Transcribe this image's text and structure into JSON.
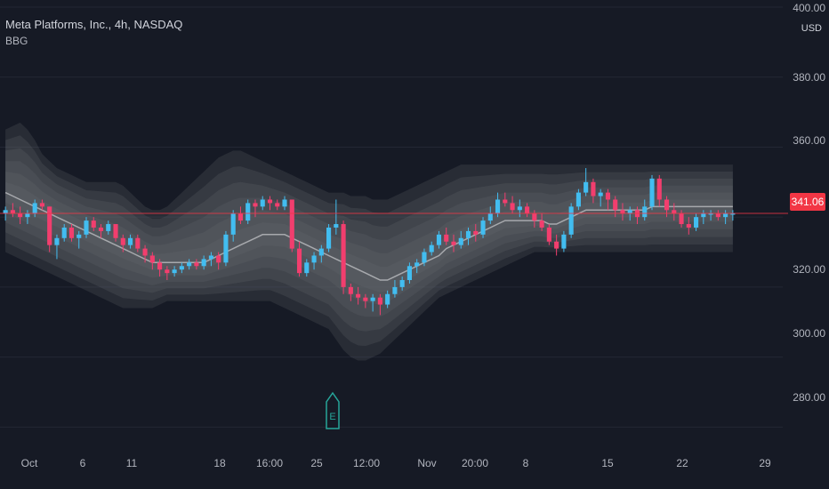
{
  "header": {
    "title": "Meta Platforms, Inc., 4h, NASDAQ",
    "indicator": "BBG"
  },
  "price_axis": {
    "currency": "USD",
    "ticks": [
      "400.00",
      "380.00",
      "360.00",
      "341.06",
      "320.00",
      "300.00",
      "280.00"
    ],
    "last_price": "341.06"
  },
  "time_axis": {
    "ticks": [
      "Oct",
      "6",
      "11",
      "18",
      "16:00",
      "25",
      "12:00",
      "Nov",
      "20:00",
      "8",
      "15",
      "22",
      "29"
    ]
  },
  "earnings_marker": {
    "label": "E"
  },
  "colors": {
    "background": "#161a25",
    "up": "#42bdf0",
    "down": "#f23e6e",
    "band": "#6b6d72",
    "basis": "#a7a9ad",
    "last_price": "#f23645"
  },
  "chart_data": {
    "type": "candlestick",
    "title": "Meta Platforms, Inc., 4h, NASDAQ",
    "ylim": [
      275,
      400
    ],
    "grid": true,
    "last_price": 341.06,
    "series": [
      {
        "name": "BBG",
        "x": [
          0,
          1,
          2,
          3,
          4,
          5,
          6,
          7,
          8,
          9,
          10,
          11,
          12,
          13,
          14,
          15,
          16,
          17,
          18,
          19,
          20,
          21,
          22,
          23,
          24,
          25,
          26,
          27,
          28,
          29,
          30,
          31,
          32,
          33,
          34,
          35,
          36,
          37,
          38,
          39,
          40,
          41,
          42,
          43,
          44,
          45,
          46,
          47,
          48,
          49,
          50,
          51,
          52,
          53,
          54,
          55,
          56,
          57,
          58,
          59,
          60,
          61,
          62,
          63,
          64,
          65,
          66,
          67,
          68,
          69,
          70,
          71,
          72,
          73,
          74,
          75,
          76,
          77,
          78,
          79,
          80,
          81,
          82,
          83,
          84,
          85,
          86,
          87,
          88,
          89,
          90,
          91,
          92,
          93,
          94,
          95,
          96,
          97,
          98,
          99
        ],
        "ohlc": [
          [
            341,
            343,
            339,
            342
          ],
          [
            342,
            344,
            340,
            341
          ],
          [
            341,
            343,
            338,
            340
          ],
          [
            340,
            342,
            338,
            341
          ],
          [
            341,
            345,
            340,
            344
          ],
          [
            344,
            345,
            342,
            343
          ],
          [
            343,
            343,
            330,
            332
          ],
          [
            332,
            335,
            328,
            334
          ],
          [
            334,
            338,
            333,
            337
          ],
          [
            337,
            338,
            333,
            334
          ],
          [
            334,
            336,
            331,
            335
          ],
          [
            335,
            340,
            334,
            339
          ],
          [
            339,
            340,
            336,
            337
          ],
          [
            337,
            338,
            334,
            336
          ],
          [
            336,
            339,
            335,
            338
          ],
          [
            338,
            338,
            333,
            334
          ],
          [
            334,
            335,
            330,
            332
          ],
          [
            332,
            335,
            331,
            334
          ],
          [
            334,
            335,
            330,
            331
          ],
          [
            331,
            332,
            327,
            329
          ],
          [
            329,
            330,
            325,
            327
          ],
          [
            327,
            328,
            323,
            325
          ],
          [
            325,
            326,
            322,
            324
          ],
          [
            324,
            326,
            323,
            325
          ],
          [
            325,
            327,
            324,
            326
          ],
          [
            326,
            328,
            325,
            327
          ],
          [
            327,
            328,
            325,
            326
          ],
          [
            326,
            329,
            325,
            328
          ],
          [
            328,
            330,
            326,
            329
          ],
          [
            329,
            330,
            325,
            327
          ],
          [
            327,
            336,
            326,
            335
          ],
          [
            335,
            342,
            333,
            341
          ],
          [
            341,
            343,
            338,
            339
          ],
          [
            339,
            345,
            338,
            344
          ],
          [
            344,
            345,
            340,
            343
          ],
          [
            343,
            346,
            342,
            345
          ],
          [
            345,
            346,
            342,
            344
          ],
          [
            344,
            345,
            342,
            343
          ],
          [
            343,
            346,
            342,
            345
          ],
          [
            345,
            345,
            330,
            331
          ],
          [
            331,
            333,
            323,
            324
          ],
          [
            324,
            328,
            323,
            327
          ],
          [
            327,
            330,
            325,
            329
          ],
          [
            329,
            332,
            327,
            331
          ],
          [
            331,
            338,
            330,
            337
          ],
          [
            337,
            345,
            335,
            338
          ],
          [
            338,
            339,
            318,
            320
          ],
          [
            320,
            321,
            316,
            318
          ],
          [
            318,
            320,
            315,
            317
          ],
          [
            317,
            318,
            314,
            316
          ],
          [
            316,
            318,
            313,
            317
          ],
          [
            317,
            318,
            312,
            315
          ],
          [
            315,
            319,
            314,
            318
          ],
          [
            318,
            322,
            317,
            320
          ],
          [
            320,
            323,
            319,
            322
          ],
          [
            322,
            327,
            321,
            326
          ],
          [
            326,
            328,
            324,
            327
          ],
          [
            327,
            331,
            326,
            330
          ],
          [
            330,
            333,
            329,
            332
          ],
          [
            332,
            336,
            331,
            335
          ],
          [
            335,
            337,
            332,
            333
          ],
          [
            333,
            335,
            330,
            332
          ],
          [
            332,
            336,
            331,
            334
          ],
          [
            334,
            337,
            332,
            336
          ],
          [
            336,
            338,
            333,
            335
          ],
          [
            335,
            340,
            334,
            339
          ],
          [
            339,
            343,
            338,
            341
          ],
          [
            341,
            347,
            340,
            345
          ],
          [
            345,
            347,
            343,
            344
          ],
          [
            344,
            346,
            341,
            342
          ],
          [
            342,
            345,
            340,
            343
          ],
          [
            343,
            344,
            340,
            341
          ],
          [
            341,
            342,
            337,
            339
          ],
          [
            339,
            341,
            336,
            337
          ],
          [
            337,
            338,
            332,
            333
          ],
          [
            333,
            335,
            329,
            331
          ],
          [
            331,
            336,
            330,
            335
          ],
          [
            335,
            344,
            334,
            343
          ],
          [
            343,
            348,
            342,
            347
          ],
          [
            347,
            354,
            346,
            350
          ],
          [
            350,
            351,
            344,
            346
          ],
          [
            346,
            348,
            343,
            347
          ],
          [
            347,
            348,
            342,
            345
          ],
          [
            345,
            346,
            340,
            342
          ],
          [
            342,
            344,
            339,
            341
          ],
          [
            341,
            343,
            339,
            342
          ],
          [
            342,
            343,
            338,
            340
          ],
          [
            340,
            345,
            339,
            343
          ],
          [
            343,
            352,
            342,
            351
          ],
          [
            351,
            352,
            343,
            345
          ],
          [
            345,
            346,
            340,
            342
          ],
          [
            342,
            344,
            339,
            341
          ],
          [
            341,
            342,
            337,
            338
          ],
          [
            338,
            340,
            335,
            337
          ],
          [
            337,
            341,
            336,
            340
          ],
          [
            340,
            342,
            338,
            341
          ],
          [
            341,
            342,
            339,
            341.06
          ],
          [
            341,
            342,
            339,
            340
          ],
          [
            340,
            342,
            338,
            341
          ],
          [
            341,
            342,
            339,
            341.06
          ]
        ],
        "basis": [
          347,
          346,
          345,
          344,
          343,
          342,
          341,
          340,
          339,
          338,
          337,
          336,
          335,
          334,
          333,
          332,
          331,
          330,
          329,
          328,
          327,
          327,
          327,
          327,
          327,
          327,
          327,
          327,
          328,
          329,
          330,
          331,
          332,
          333,
          334,
          335,
          335,
          335,
          335,
          334,
          333,
          332,
          331,
          330,
          329,
          328,
          327,
          326,
          325,
          324,
          323,
          322,
          322,
          323,
          324,
          325,
          326,
          327,
          328,
          329,
          331,
          332,
          333,
          334,
          335,
          336,
          337,
          338,
          339,
          339,
          339,
          339,
          339,
          339,
          338,
          338,
          339,
          340,
          341,
          342,
          342,
          342,
          342,
          342,
          342,
          342,
          342,
          342,
          343,
          343,
          343,
          343,
          343,
          343,
          343,
          343,
          343,
          343,
          343,
          343
        ],
        "upper": [
          365,
          366,
          367,
          365,
          362,
          358,
          356,
          354,
          353,
          352,
          351,
          350,
          350,
          350,
          350,
          350,
          349,
          347,
          345,
          343,
          342,
          342,
          343,
          345,
          347,
          349,
          351,
          353,
          355,
          357,
          358,
          359,
          359,
          358,
          357,
          356,
          355,
          354,
          353,
          352,
          351,
          350,
          349,
          348,
          347,
          347,
          347,
          346,
          346,
          346,
          345,
          345,
          345,
          346,
          347,
          348,
          349,
          350,
          351,
          352,
          353,
          354,
          355,
          355,
          355,
          355,
          355,
          355,
          355,
          355,
          355,
          355,
          355,
          355,
          355,
          355,
          355,
          355,
          355,
          355,
          355,
          355,
          355,
          355,
          355,
          355,
          355,
          355,
          355,
          355,
          355,
          355,
          355,
          355,
          355,
          355,
          355,
          355,
          355,
          355
        ],
        "lower": [
          330,
          329,
          328,
          327,
          326,
          325,
          324,
          323,
          322,
          321,
          320,
          319,
          318,
          317,
          316,
          315,
          314,
          314,
          314,
          314,
          314,
          315,
          316,
          316,
          316,
          316,
          316,
          316,
          316,
          316,
          316,
          316,
          316,
          316,
          316,
          316,
          316,
          315,
          314,
          313,
          312,
          311,
          310,
          309,
          308,
          305,
          302,
          300,
          299,
          299,
          300,
          301,
          303,
          305,
          307,
          309,
          311,
          313,
          315,
          317,
          318,
          319,
          320,
          321,
          322,
          323,
          324,
          325,
          326,
          327,
          328,
          329,
          330,
          330,
          330,
          330,
          330,
          330,
          330,
          330,
          330,
          330,
          330,
          330,
          330,
          330,
          330,
          330,
          330,
          330,
          330,
          330,
          330,
          330,
          330,
          330,
          330,
          330,
          330,
          330
        ]
      }
    ],
    "x_tick_labels": [
      "Oct",
      "6",
      "11",
      "18",
      "16:00",
      "25",
      "12:00",
      "Nov",
      "20:00",
      "8",
      "15",
      "22",
      "29"
    ],
    "y_tick_labels": [
      "400.00",
      "380.00",
      "360.00",
      "320.00",
      "300.00",
      "280.00"
    ]
  }
}
